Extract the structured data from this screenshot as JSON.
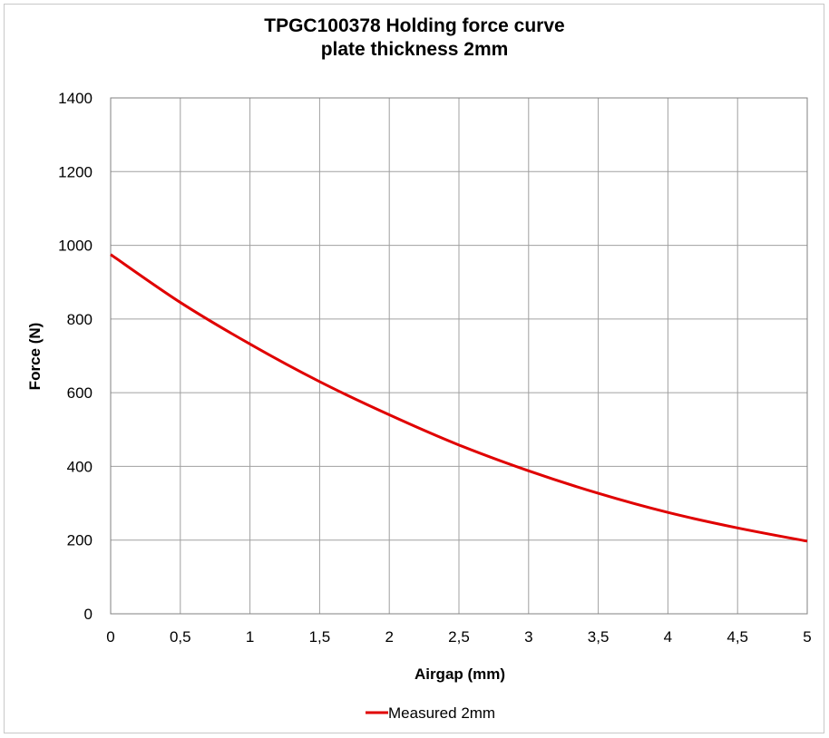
{
  "chart_data": {
    "type": "line",
    "title_line1": "TPGC100378    Holding force curve",
    "title_line2": "plate thickness 2mm",
    "xlabel": "Airgap (mm)",
    "ylabel": "Force (N)",
    "xlim": [
      0,
      5
    ],
    "ylim": [
      0,
      1400
    ],
    "x_ticks": [
      {
        "value": 0,
        "label": "0"
      },
      {
        "value": 0.5,
        "label": "0,5"
      },
      {
        "value": 1,
        "label": "1"
      },
      {
        "value": 1.5,
        "label": "1,5"
      },
      {
        "value": 2,
        "label": "2"
      },
      {
        "value": 2.5,
        "label": "2,5"
      },
      {
        "value": 3,
        "label": "3"
      },
      {
        "value": 3.5,
        "label": "3,5"
      },
      {
        "value": 4,
        "label": "4"
      },
      {
        "value": 4.5,
        "label": "4,5"
      },
      {
        "value": 5,
        "label": "5"
      }
    ],
    "y_ticks": [
      {
        "value": 0,
        "label": "0"
      },
      {
        "value": 200,
        "label": "200"
      },
      {
        "value": 400,
        "label": "400"
      },
      {
        "value": 600,
        "label": "600"
      },
      {
        "value": 800,
        "label": "800"
      },
      {
        "value": 1000,
        "label": "1000"
      },
      {
        "value": 1200,
        "label": "1200"
      },
      {
        "value": 1400,
        "label": "1400"
      }
    ],
    "grid": true,
    "legend_position": "bottom-center",
    "series": [
      {
        "name": "Measured 2mm",
        "color": "#e00000",
        "x": [
          0,
          0.5,
          1,
          1.5,
          2,
          2.5,
          3,
          3.5,
          4,
          4.5,
          5
        ],
        "y": [
          975,
          845,
          732,
          630,
          540,
          458,
          388,
          327,
          275,
          233,
          197
        ]
      }
    ]
  }
}
